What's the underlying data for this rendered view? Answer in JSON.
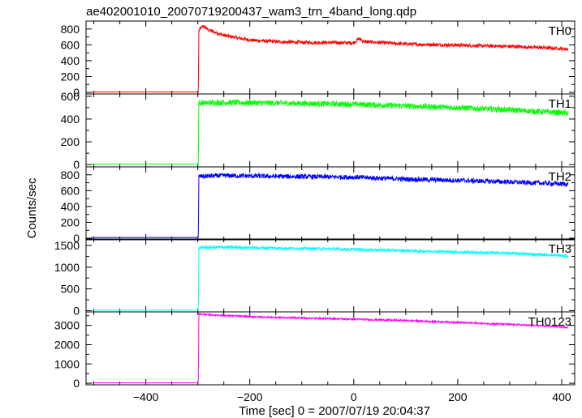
{
  "title": "ae402001010_20070719200437_wam3_trn_4band_long.qdp",
  "ylabel": "Counts/sec",
  "xlabel": "Time [sec] 0 = 2007/07/19 20:04:37",
  "chart_data": {
    "type": "line",
    "title": "ae402001010_20070719200437_wam3_trn_4band_long.qdp",
    "xlabel": "Time [sec] 0 = 2007/07/19 20:04:37",
    "ylabel": "Counts/sec",
    "xlim": [
      -515,
      425
    ],
    "xticks": [
      -400,
      -200,
      0,
      200,
      400
    ],
    "grid": false,
    "panels": [
      {
        "name": "TH0",
        "color": "#ff0000",
        "ylim": [
          -20,
          900
        ],
        "yticks": [
          0,
          200,
          400,
          600,
          800
        ],
        "noise": 22,
        "points": [
          [
            -505,
            5
          ],
          [
            -299,
            5
          ],
          [
            -298,
            780
          ],
          [
            -290,
            840
          ],
          [
            -280,
            790
          ],
          [
            -250,
            720
          ],
          [
            -200,
            660
          ],
          [
            -150,
            640
          ],
          [
            -100,
            630
          ],
          [
            -50,
            628
          ],
          [
            0,
            625
          ],
          [
            10,
            680
          ],
          [
            20,
            640
          ],
          [
            100,
            610
          ],
          [
            200,
            595
          ],
          [
            300,
            580
          ],
          [
            380,
            560
          ],
          [
            413,
            545
          ]
        ]
      },
      {
        "name": "TH1",
        "color": "#00ff00",
        "ylim": [
          -20,
          620
        ],
        "yticks": [
          0,
          200,
          400,
          600
        ],
        "noise": 25,
        "points": [
          [
            -505,
            5
          ],
          [
            -299,
            5
          ],
          [
            -298,
            540
          ],
          [
            -250,
            545
          ],
          [
            -150,
            540
          ],
          [
            0,
            530
          ],
          [
            100,
            515
          ],
          [
            200,
            500
          ],
          [
            300,
            480
          ],
          [
            380,
            460
          ],
          [
            413,
            450
          ]
        ]
      },
      {
        "name": "TH2",
        "color": "#0000ff",
        "ylim": [
          -20,
          900
        ],
        "yticks": [
          0,
          200,
          400,
          600,
          800
        ],
        "noise": 30,
        "points": [
          [
            -505,
            10
          ],
          [
            -299,
            10
          ],
          [
            -298,
            780
          ],
          [
            -250,
            790
          ],
          [
            -150,
            780
          ],
          [
            0,
            770
          ],
          [
            100,
            745
          ],
          [
            200,
            730
          ],
          [
            300,
            710
          ],
          [
            380,
            690
          ],
          [
            413,
            680
          ]
        ]
      },
      {
        "name": "TH3",
        "color": "#00ffff",
        "ylim": [
          -30,
          1650
        ],
        "yticks": [
          0,
          500,
          1000,
          1500
        ],
        "noise": 35,
        "points": [
          [
            -505,
            10
          ],
          [
            -299,
            10
          ],
          [
            -298,
            1450
          ],
          [
            -250,
            1460
          ],
          [
            -150,
            1440
          ],
          [
            0,
            1410
          ],
          [
            100,
            1380
          ],
          [
            200,
            1350
          ],
          [
            300,
            1320
          ],
          [
            380,
            1280
          ],
          [
            413,
            1250
          ]
        ]
      },
      {
        "name": "TH0123",
        "color": "#ff00ff",
        "ylim": [
          -80,
          3700
        ],
        "yticks": [
          0,
          1000,
          2000,
          3000
        ],
        "noise": 45,
        "points": [
          [
            -505,
            20
          ],
          [
            -299,
            20
          ],
          [
            -298,
            3600
          ],
          [
            -280,
            3550
          ],
          [
            -200,
            3450
          ],
          [
            -100,
            3380
          ],
          [
            0,
            3320
          ],
          [
            100,
            3250
          ],
          [
            200,
            3150
          ],
          [
            300,
            3050
          ],
          [
            380,
            2950
          ],
          [
            413,
            2900
          ]
        ]
      }
    ]
  }
}
